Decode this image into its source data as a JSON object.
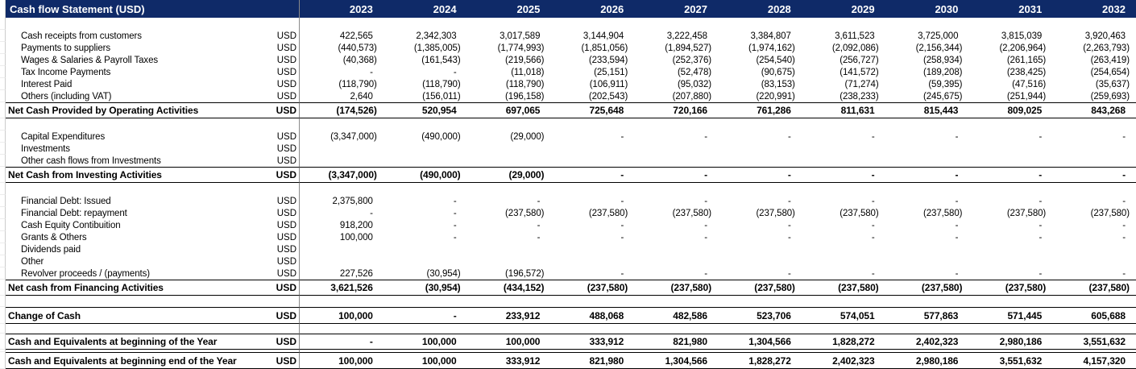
{
  "header": {
    "title": "Cash flow Statement (USD)",
    "years": [
      "2023",
      "2024",
      "2025",
      "2026",
      "2027",
      "2028",
      "2029",
      "2030",
      "2031",
      "2032"
    ]
  },
  "colors": {
    "header_bg": "#0f2a68",
    "header_fg": "#ffffff",
    "vertical_line": "#8a8a8a",
    "total_border": "#000000",
    "gutter_line": "#cccccc",
    "gutter_grid": "#ececec"
  },
  "rows": [
    {
      "kind": "spacer",
      "h": 15
    },
    {
      "kind": "item",
      "h": 15,
      "label": "Cash receipts from customers",
      "usd": "USD",
      "values": [
        "422,565",
        "2,342,303",
        "3,017,589",
        "3,144,904",
        "3,222,458",
        "3,384,807",
        "3,611,523",
        "3,725,000",
        "3,815,039",
        "3,920,463"
      ]
    },
    {
      "kind": "item",
      "h": 15,
      "label": "Payments to suppliers",
      "usd": "USD",
      "values": [
        "(440,573)",
        "(1,385,005)",
        "(1,774,993)",
        "(1,851,056)",
        "(1,894,527)",
        "(1,974,162)",
        "(2,092,086)",
        "(2,156,344)",
        "(2,206,964)",
        "(2,263,793)"
      ]
    },
    {
      "kind": "item",
      "h": 15,
      "label": "Wages & Salaries & Payroll Taxes",
      "usd": "USD",
      "values": [
        "(40,368)",
        "(161,543)",
        "(219,566)",
        "(233,594)",
        "(252,376)",
        "(254,540)",
        "(256,727)",
        "(258,934)",
        "(261,165)",
        "(263,419)"
      ]
    },
    {
      "kind": "item",
      "h": 15,
      "label": "Tax Income Payments",
      "usd": "USD",
      "values": [
        "-",
        "-",
        "(11,018)",
        "(25,151)",
        "(52,478)",
        "(90,675)",
        "(141,572)",
        "(189,208)",
        "(238,425)",
        "(254,654)"
      ]
    },
    {
      "kind": "item",
      "h": 15,
      "label": "Interest Paid",
      "usd": "USD",
      "values": [
        "(118,790)",
        "(118,790)",
        "(118,790)",
        "(106,911)",
        "(95,032)",
        "(83,153)",
        "(71,274)",
        "(59,395)",
        "(47,516)",
        "(35,637)"
      ]
    },
    {
      "kind": "item",
      "h": 15,
      "label": "Others (including VAT)",
      "usd": "USD",
      "values": [
        "2,640",
        "(156,011)",
        "(196,158)",
        "(202,543)",
        "(207,880)",
        "(220,991)",
        "(238,233)",
        "(245,675)",
        "(251,944)",
        "(259,693)"
      ]
    },
    {
      "kind": "total",
      "h": 20,
      "label": "Net Cash Provided by Operating Activities",
      "usd": "USD",
      "values": [
        "(174,526)",
        "520,954",
        "697,065",
        "725,648",
        "720,166",
        "761,286",
        "811,631",
        "815,443",
        "809,025",
        "843,268"
      ]
    },
    {
      "kind": "spacer",
      "h": 15
    },
    {
      "kind": "item",
      "h": 15,
      "label": "Capital Expenditures",
      "usd": "USD",
      "values": [
        "(3,347,000)",
        "(490,000)",
        "(29,000)",
        "-",
        "-",
        "-",
        "-",
        "-",
        "-",
        "-"
      ]
    },
    {
      "kind": "item",
      "h": 15,
      "label": "Investments",
      "usd": "USD",
      "values": [
        "",
        "",
        "",
        "",
        "",
        "",
        "",
        "",
        "",
        ""
      ]
    },
    {
      "kind": "item",
      "h": 15,
      "label": "Other cash flows from Investments",
      "usd": "USD",
      "values": [
        "",
        "",
        "",
        "",
        "",
        "",
        "",
        "",
        "",
        ""
      ]
    },
    {
      "kind": "total",
      "h": 20,
      "label": "Net Cash from Investing Activities",
      "usd": "USD",
      "values": [
        "(3,347,000)",
        "(490,000)",
        "(29,000)",
        "-",
        "-",
        "-",
        "-",
        "-",
        "-",
        "-"
      ]
    },
    {
      "kind": "spacer",
      "h": 15
    },
    {
      "kind": "item",
      "h": 15,
      "label": "Financial Debt: Issued",
      "usd": "USD",
      "values": [
        "2,375,800",
        "-",
        "-",
        "-",
        "-",
        "-",
        "-",
        "-",
        "-",
        "-"
      ]
    },
    {
      "kind": "item",
      "h": 15,
      "label": "Financial Debt: repayment",
      "usd": "USD",
      "values": [
        "-",
        "-",
        "(237,580)",
        "(237,580)",
        "(237,580)",
        "(237,580)",
        "(237,580)",
        "(237,580)",
        "(237,580)",
        "(237,580)"
      ]
    },
    {
      "kind": "item",
      "h": 15,
      "label": "Cash Equity Contibuition",
      "usd": "USD",
      "values": [
        "918,200",
        "-",
        "-",
        "-",
        "-",
        "-",
        "-",
        "-",
        "-",
        "-"
      ]
    },
    {
      "kind": "item",
      "h": 15,
      "label": "Grants & Others",
      "usd": "USD",
      "values": [
        "100,000",
        "-",
        "-",
        "-",
        "-",
        "-",
        "-",
        "-",
        "-",
        "-"
      ]
    },
    {
      "kind": "item",
      "h": 15,
      "label": "Dividends paid",
      "usd": "USD",
      "values": [
        "",
        "",
        "",
        "",
        "",
        "",
        "",
        "",
        "",
        ""
      ]
    },
    {
      "kind": "item",
      "h": 15,
      "label": "Other",
      "usd": "USD",
      "values": [
        "",
        "",
        "",
        "",
        "",
        "",
        "",
        "",
        "",
        ""
      ]
    },
    {
      "kind": "item",
      "h": 15,
      "label": "Revolver proceeds / (payments)",
      "usd": "USD",
      "values": [
        "227,526",
        "(30,954)",
        "(196,572)",
        "-",
        "-",
        "-",
        "-",
        "-",
        "-",
        "-"
      ]
    },
    {
      "kind": "total",
      "h": 20,
      "label": "Net cash from Financing Activities",
      "usd": "USD",
      "values": [
        "3,621,526",
        "(30,954)",
        "(434,152)",
        "(237,580)",
        "(237,580)",
        "(237,580)",
        "(237,580)",
        "(237,580)",
        "(237,580)",
        "(237,580)"
      ]
    },
    {
      "kind": "spacer",
      "h": 14
    },
    {
      "kind": "total",
      "h": 21,
      "label": "Change of Cash",
      "usd": "USD",
      "values": [
        "100,000",
        "-",
        "233,912",
        "488,068",
        "482,586",
        "523,706",
        "574,051",
        "577,863",
        "571,445",
        "605,688"
      ]
    },
    {
      "kind": "spacer",
      "h": 12
    },
    {
      "kind": "total",
      "h": 20,
      "label": "Cash and Equivalents at beginning of the Year",
      "usd": "USD",
      "values": [
        "-",
        "100,000",
        "100,000",
        "333,912",
        "821,980",
        "1,304,566",
        "1,828,272",
        "2,402,323",
        "2,980,186",
        "3,551,632"
      ]
    },
    {
      "kind": "spacer",
      "h": 3
    },
    {
      "kind": "total",
      "h": 21,
      "label": "Cash and Equivalents at beginning end of the Year",
      "usd": "USD",
      "values": [
        "100,000",
        "100,000",
        "333,912",
        "821,980",
        "1,304,566",
        "1,828,272",
        "2,402,323",
        "2,980,186",
        "3,551,632",
        "4,157,320"
      ]
    }
  ]
}
